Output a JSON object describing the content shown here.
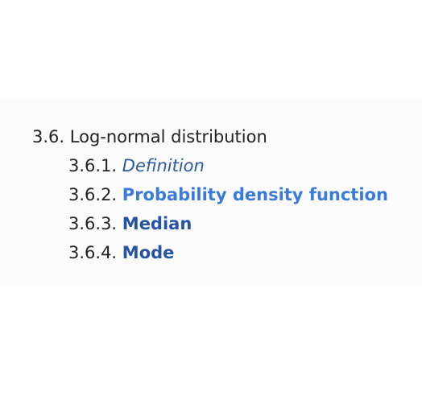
{
  "toc": {
    "section": {
      "number": "3.6.",
      "title": "Log-normal distribution"
    },
    "items": [
      {
        "number": "3.6.1.",
        "label": "Definition"
      },
      {
        "number": "3.6.2.",
        "label": "Probability density function"
      },
      {
        "number": "3.6.3.",
        "label": "Median"
      },
      {
        "number": "3.6.4.",
        "label": "Mode"
      }
    ],
    "colors": {
      "text": "#222222",
      "link_italic": "#2c5aa0",
      "link_bright": "#3b7bd8",
      "link_dark": "#2554a3",
      "panel_bg": "#fbfbfb"
    }
  }
}
